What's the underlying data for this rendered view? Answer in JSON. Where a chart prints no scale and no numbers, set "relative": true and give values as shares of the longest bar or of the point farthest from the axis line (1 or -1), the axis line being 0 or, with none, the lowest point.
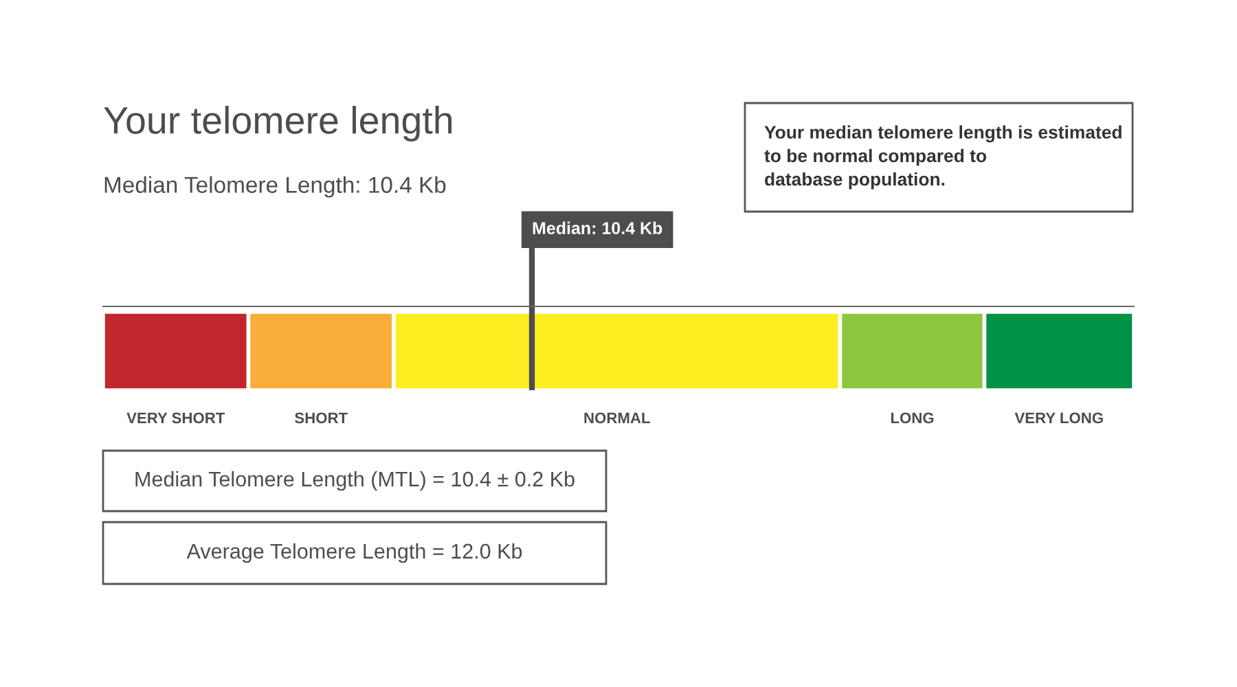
{
  "chart_data": {
    "type": "bar",
    "title": "Your telomere length",
    "subtitle": "Median Telomere Length: 10.4 Kb",
    "orientation": "horizontal",
    "stacked": true,
    "relative": true,
    "categories": [
      null
    ],
    "series": [
      {
        "name": "VERY SHORT",
        "color": "#c1272d",
        "values": [
          0.141
        ]
      },
      {
        "name": "SHORT",
        "color": "#f9ae3b",
        "values": [
          0.141
        ]
      },
      {
        "name": "NORMAL",
        "color": "#fcee21",
        "values": [
          0.433
        ]
      },
      {
        "name": "LONG",
        "color": "#8dc63f",
        "values": [
          0.14
        ]
      },
      {
        "name": "VERY LONG",
        "color": "#009245",
        "values": [
          0.145
        ]
      }
    ],
    "ref_lines": [
      {
        "axis": "x",
        "value": 0.416,
        "color": "#4d4d4d"
      }
    ],
    "annotations": [
      "Your median telomere length is estimated\nto be normal compared to\ndatabase population.",
      "Median Telomere Length (MTL) = 10.4 ± 0.2 Kb",
      "Average Telomere Length = 12.0 Kb",
      "Median: 10.4 Kb"
    ]
  }
}
